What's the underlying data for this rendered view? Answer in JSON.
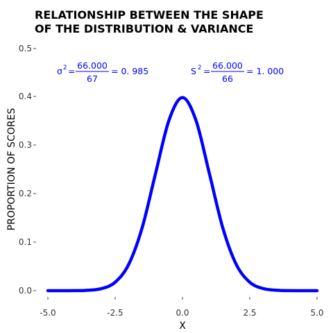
{
  "chart_data": {
    "type": "line",
    "title_lines": [
      "RELATIONSHIP BETWEEN THE SHAPE",
      "OF THE DISTRIBUTION & VARIANCE"
    ],
    "xlabel": "X",
    "ylabel": "PROPORTION OF SCORES",
    "xlim": [
      -5.0,
      5.0
    ],
    "ylim": [
      0.0,
      0.5
    ],
    "x_ticks": [
      "-5.0",
      "-2.5",
      "0.0",
      "2.5",
      "5.0"
    ],
    "y_ticks": [
      "0.0",
      "0.1",
      "0.2",
      "0.3",
      "0.4",
      "0.5"
    ],
    "grid": false,
    "series": [
      {
        "color": "#0000ff",
        "x": [
          -5.0,
          -4.5,
          -4.0,
          -3.5,
          -3.0,
          -2.5,
          -2.0,
          -1.5,
          -1.0,
          -0.5,
          0.0,
          0.5,
          1.0,
          1.5,
          2.0,
          2.5,
          3.0,
          3.5,
          4.0,
          4.5,
          5.0
        ],
        "y": [
          0.0,
          0.0,
          0.0001,
          0.0009,
          0.0044,
          0.0175,
          0.054,
          0.1295,
          0.242,
          0.3521,
          0.3989,
          0.3521,
          0.242,
          0.1295,
          0.054,
          0.0175,
          0.0044,
          0.0009,
          0.0001,
          0.0,
          0.0
        ]
      }
    ],
    "annotations": [
      {
        "sym": "σ",
        "sup": "2",
        "eq": "=",
        "num": "66.000",
        "den": "67",
        "result": "= 0. 985",
        "color": "#0000ff"
      },
      {
        "sym": "S",
        "sup": "2",
        "eq": "=",
        "num": "66.000",
        "den": "66",
        "result": "= 1. 000",
        "color": "#0000ff"
      }
    ]
  }
}
